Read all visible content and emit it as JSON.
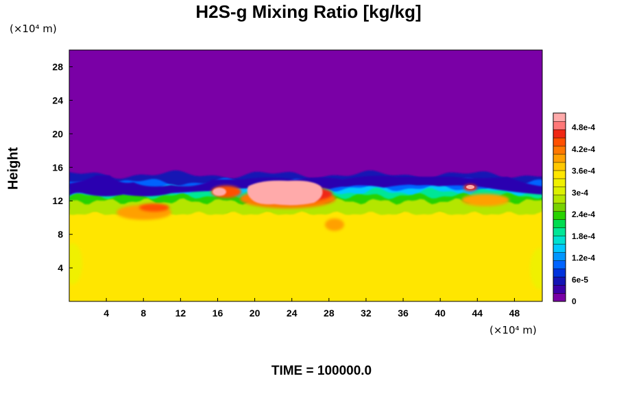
{
  "chart_data": {
    "type": "heatmap",
    "title": "H2S-g Mixing Ratio [kg/kg]",
    "ylabel": "Height",
    "xlabel": "",
    "x_unit": "(×10⁴ m)",
    "y_unit": "(×10⁴ m)",
    "xlim": [
      0,
      51
    ],
    "ylim": [
      0,
      30
    ],
    "x_ticks": [
      "4",
      "8",
      "12",
      "16",
      "20",
      "24",
      "28",
      "32",
      "36",
      "40",
      "44",
      "48"
    ],
    "y_ticks": [
      "4",
      "8",
      "12",
      "16",
      "20",
      "24",
      "28"
    ],
    "colorbar": {
      "range": [
        0,
        0.00052
      ],
      "tick_labels": [
        "0",
        "6e-5",
        "1.2e-4",
        "1.8e-4",
        "2.4e-4",
        "3e-4",
        "3.6e-4",
        "4.2e-4",
        "4.8e-4"
      ],
      "colors": [
        "#7a00a6",
        "#3c00a8",
        "#1414b4",
        "#0032dc",
        "#0064ff",
        "#0096ff",
        "#00c8ff",
        "#00e0d0",
        "#00e696",
        "#00dc50",
        "#28d200",
        "#78d200",
        "#b4e600",
        "#dcf000",
        "#f0f000",
        "#ffe600",
        "#ffc800",
        "#ffa000",
        "#ff7800",
        "#ff5000",
        "#f02814",
        "#ff7878",
        "#ffaaaa"
      ]
    },
    "fields": {
      "upper_region_value": 0,
      "lower_region_value": 0.00036,
      "plume_peak_value": 0.0005,
      "interface_height": 13
    }
  },
  "time_label": "TIME = 100000.0"
}
